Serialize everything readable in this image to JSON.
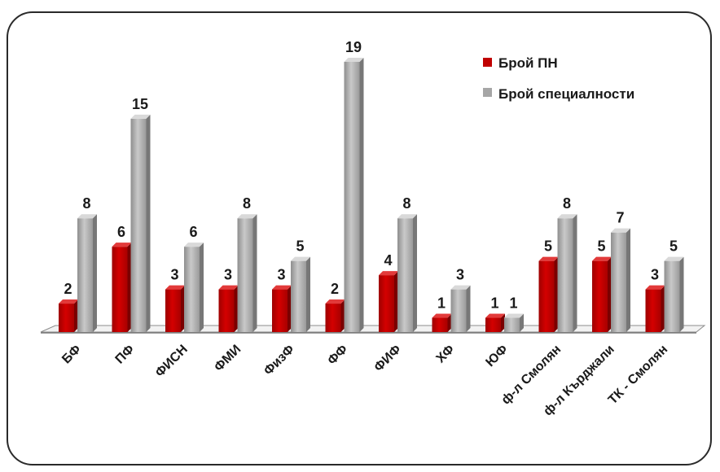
{
  "chart_data": {
    "type": "bar",
    "categories": [
      "БФ",
      "ПФ",
      "ФИСН",
      "ФМИ",
      "ФизФ",
      "ФФ",
      "ФИФ",
      "ХФ",
      "ЮФ",
      "ф-л Смолян",
      "ф-л Кърджали",
      "ТК - Смолян"
    ],
    "series": [
      {
        "name": "Брой ПН",
        "values": [
          2,
          6,
          3,
          3,
          3,
          2,
          4,
          1,
          1,
          5,
          5,
          3
        ],
        "color": "#c00000"
      },
      {
        "name": "Брой специалности",
        "values": [
          8,
          15,
          6,
          8,
          5,
          19,
          8,
          3,
          1,
          8,
          7,
          5
        ],
        "color": "#a6a6a6"
      }
    ],
    "ylim": [
      0,
      19
    ],
    "grid": false,
    "legend_position": "top-right",
    "data_labels": true,
    "style": "3d-columns"
  }
}
